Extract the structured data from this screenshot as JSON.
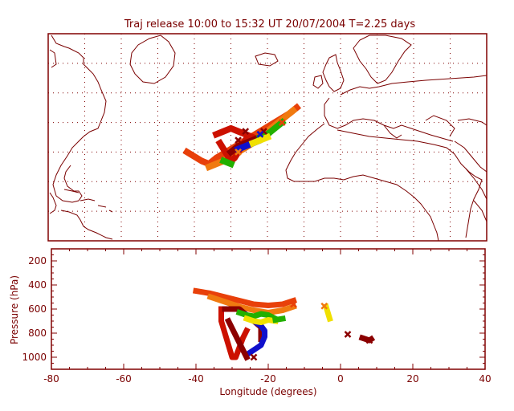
{
  "colors": {
    "axis": "#800000",
    "coast": "#7a0000",
    "grid": "#800000",
    "red": "#cc1100",
    "orangered": "#e8400a",
    "orange": "#f07a10",
    "darkred": "#8b0000",
    "blue": "#1010cc",
    "green": "#22b000",
    "yellow": "#f0e000"
  },
  "chart_data": [
    {
      "type": "map",
      "title": "Traj release 10:00 to 15:32 UT 20/07/2004     T=2.25 days",
      "xlim": [
        -80,
        40
      ],
      "ylim": [
        0,
        70
      ],
      "grid": true,
      "series": [
        {
          "color_key": "orangered",
          "x": [
            -42,
            -38,
            -36,
            -34,
            -30,
            -26,
            -22,
            -18,
            -14,
            -12
          ],
          "y": [
            30,
            27,
            26,
            28,
            31,
            34,
            37,
            40,
            43,
            45
          ]
        },
        {
          "color_key": "orange",
          "x": [
            -36,
            -32,
            -28,
            -24,
            -20,
            -16,
            -13
          ],
          "y": [
            25,
            27,
            30,
            33,
            37,
            41,
            44
          ]
        },
        {
          "color_key": "red",
          "x": [
            -34,
            -32,
            -30,
            -28,
            -26,
            -24
          ],
          "y": [
            36,
            37,
            38,
            37,
            36,
            35
          ]
        },
        {
          "color_key": "red",
          "x": [
            -33,
            -32,
            -31,
            -30,
            -29,
            -28,
            -27,
            -26
          ],
          "y": [
            33,
            31,
            29,
            27,
            28,
            30,
            32,
            34
          ]
        },
        {
          "color_key": "darkred",
          "x": [
            -30,
            -28,
            -26,
            -24,
            -22
          ],
          "y": [
            30,
            32,
            33,
            34,
            35
          ]
        },
        {
          "color_key": "blue",
          "x": [
            -28,
            -26,
            -24,
            -22,
            -20
          ],
          "y": [
            31,
            32,
            33,
            34,
            36
          ]
        },
        {
          "color_key": "green",
          "x": [
            -22,
            -20,
            -18,
            -16
          ],
          "y": [
            35,
            36,
            38,
            40
          ]
        },
        {
          "color_key": "yellow",
          "x": [
            -24,
            -22,
            -20
          ],
          "y": [
            33,
            34,
            35
          ]
        },
        {
          "color_key": "green",
          "x": [
            -32,
            -30
          ],
          "y": [
            27,
            26
          ]
        }
      ],
      "markers": [
        {
          "color_key": "darkred",
          "x": -26,
          "y": 37
        },
        {
          "color_key": "darkred",
          "x": -21,
          "y": 37
        },
        {
          "color_key": "orange",
          "x": -28,
          "y": 30
        },
        {
          "color_key": "darkred",
          "x": -28,
          "y": 34
        },
        {
          "color_key": "orangered",
          "x": -16,
          "y": 40
        },
        {
          "color_key": "blue",
          "x": -22,
          "y": 36
        }
      ]
    },
    {
      "type": "scatter",
      "xlabel": "Longitude  (degrees)",
      "ylabel": "Pressure  (hPa)",
      "xlim": [
        -80,
        40
      ],
      "ylim": [
        1100,
        100
      ],
      "xticks": [
        -80,
        -60,
        -40,
        -20,
        0,
        20,
        40
      ],
      "yticks": [
        200,
        400,
        600,
        800,
        1000
      ],
      "series": [
        {
          "color_key": "orangered",
          "x": [
            -40,
            -36,
            -32,
            -28,
            -24,
            -20,
            -16,
            -13
          ],
          "y": [
            450,
            470,
            500,
            530,
            560,
            570,
            560,
            530
          ]
        },
        {
          "color_key": "orange",
          "x": [
            -36,
            -32,
            -28,
            -24,
            -20,
            -16,
            -13
          ],
          "y": [
            500,
            540,
            580,
            610,
            630,
            610,
            580
          ]
        },
        {
          "color_key": "red",
          "x": [
            -33,
            -33,
            -32,
            -31,
            -30,
            -29,
            -28,
            -27,
            -26
          ],
          "y": [
            600,
            700,
            800,
            900,
            1000,
            1000,
            920,
            840,
            780
          ]
        },
        {
          "color_key": "darkred",
          "x": [
            -32,
            -28,
            -26,
            -24,
            -22,
            -22
          ],
          "y": [
            600,
            600,
            650,
            700,
            750,
            850
          ]
        },
        {
          "color_key": "blue",
          "x": [
            -26,
            -24,
            -22,
            -21,
            -21,
            -22,
            -24,
            -26
          ],
          "y": [
            650,
            700,
            740,
            780,
            830,
            900,
            940,
            980
          ]
        },
        {
          "color_key": "darkred",
          "x": [
            -31,
            -30,
            -29,
            -28,
            -27,
            -26
          ],
          "y": [
            700,
            760,
            820,
            880,
            940,
            1000
          ]
        },
        {
          "color_key": "green",
          "x": [
            -28,
            -26,
            -24,
            -22,
            -20,
            -18
          ],
          "y": [
            630,
            650,
            660,
            640,
            650,
            680
          ]
        },
        {
          "color_key": "yellow",
          "x": [
            -26,
            -24,
            -22,
            -20,
            -18
          ],
          "y": [
            680,
            700,
            710,
            690,
            700
          ]
        },
        {
          "color_key": "green",
          "x": [
            -18,
            -16
          ],
          "y": [
            690,
            680
          ]
        },
        {
          "color_key": "yellow",
          "x": [
            -4,
            -3.5,
            -3
          ],
          "y": [
            580,
            630,
            680
          ]
        },
        {
          "color_key": "darkred",
          "x": [
            6,
            7,
            8,
            8.5
          ],
          "y": [
            840,
            850,
            860,
            850
          ]
        }
      ],
      "markers": [
        {
          "color_key": "orange",
          "x": -4.5,
          "y": 575
        },
        {
          "color_key": "darkred",
          "x": 2,
          "y": 810
        },
        {
          "color_key": "darkred",
          "x": 8,
          "y": 860
        },
        {
          "color_key": "darkred",
          "x": -24,
          "y": 1000
        },
        {
          "color_key": "orangered",
          "x": -13,
          "y": 560
        }
      ]
    }
  ]
}
